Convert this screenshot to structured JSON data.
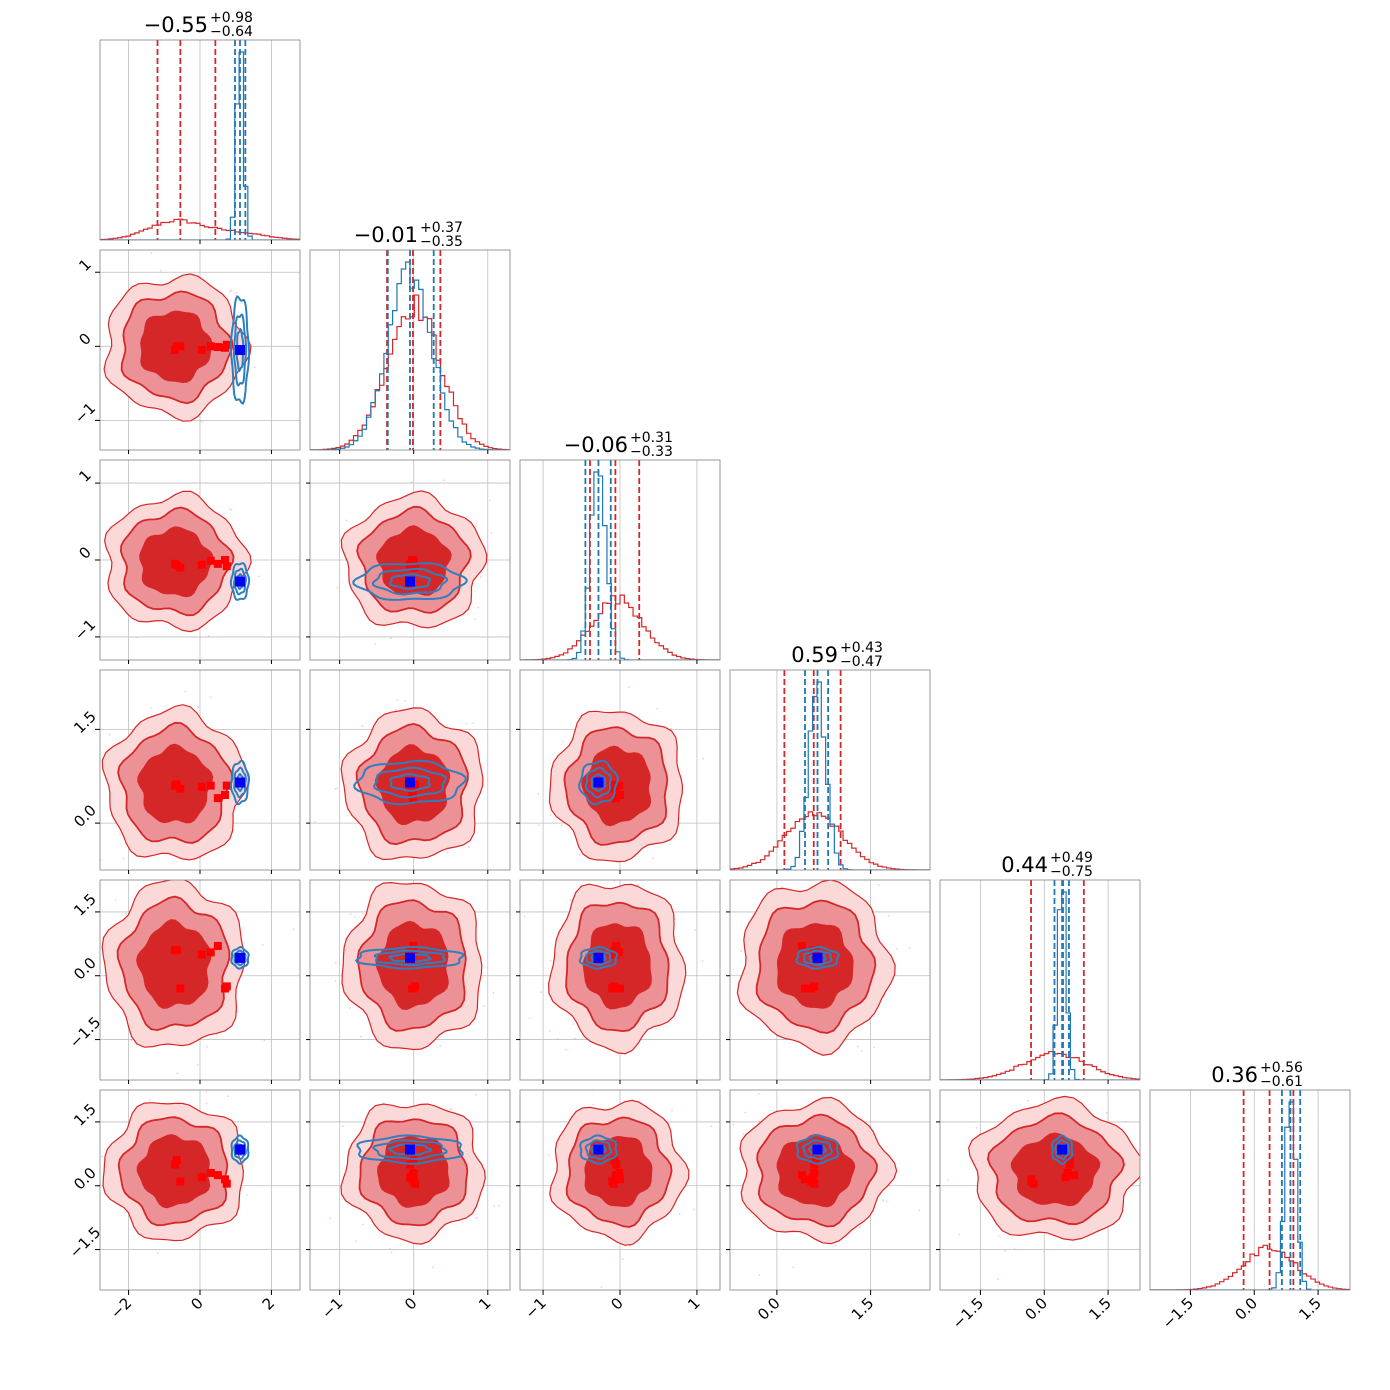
{
  "chart_data": {
    "type": "corner",
    "parameter_count": 6,
    "grid": true,
    "axis_limits": [
      [
        -2.8,
        2.8
      ],
      [
        -1.4,
        1.3
      ],
      [
        -1.3,
        1.3
      ],
      [
        -0.75,
        2.45
      ],
      [
        -2.45,
        2.25
      ],
      [
        -2.45,
        2.25
      ]
    ],
    "tick_values": [
      [
        -2,
        0,
        2
      ],
      [
        -1,
        0,
        1
      ],
      [
        -1,
        0,
        1
      ],
      [
        0.0,
        1.5
      ],
      [
        -1.5,
        0.0,
        1.5
      ],
      [
        -1.5,
        0.0,
        1.5
      ]
    ],
    "tick_labels": [
      [
        "−2",
        "0",
        "2"
      ],
      [
        "−1",
        "0",
        "1"
      ],
      [
        "−1",
        "0",
        "1"
      ],
      [
        "0.0",
        "1.5"
      ],
      [
        "−1.5",
        "0.0",
        "1.5"
      ],
      [
        "−1.5",
        "0.0",
        "1.5"
      ]
    ],
    "titles": [
      {
        "value": "−0.55",
        "plus": "+0.98",
        "minus": "−0.64"
      },
      {
        "value": "−0.01",
        "plus": "+0.37",
        "minus": "−0.35"
      },
      {
        "value": "−0.06",
        "plus": "+0.31",
        "minus": "−0.33"
      },
      {
        "value": "0.59",
        "plus": "+0.43",
        "minus": "−0.47"
      },
      {
        "value": "0.44",
        "plus": "+0.49",
        "minus": "−0.75"
      },
      {
        "value": "0.36",
        "plus": "+0.56",
        "minus": "−0.61"
      }
    ],
    "series": [
      {
        "color": "#d62728",
        "marginals": [
          {
            "mean": -0.7,
            "sd": 0.75,
            "tail_mean": 1.0,
            "tail_sd": 0.8,
            "tail_weight": 0.28,
            "quantiles": [
              -1.19,
              -0.55,
              0.43
            ]
          },
          {
            "mean": 0.0,
            "sd": 0.36,
            "quantiles": [
              -0.36,
              -0.01,
              0.36
            ]
          },
          {
            "mean": -0.03,
            "sd": 0.33,
            "quantiles": [
              -0.39,
              -0.06,
              0.25
            ]
          },
          {
            "mean": 0.6,
            "sd": 0.46,
            "quantiles": [
              0.12,
              0.59,
              1.02
            ]
          },
          {
            "mean": 0.25,
            "sd": 0.75,
            "quantiles": [
              -0.31,
              0.44,
              0.93
            ]
          },
          {
            "mean": 0.35,
            "sd": 0.62,
            "quantiles": [
              -0.25,
              0.36,
              0.92
            ]
          }
        ],
        "markers": [
          [
            -0.7,
            -0.55,
            0.5,
            0.75,
            0.3,
            0.7,
            -0.65,
            0.05
          ],
          [
            -0.05,
            0.0,
            -0.01,
            0.02,
            0.0,
            -0.02,
            0.0,
            -0.05
          ],
          [
            -0.05,
            -0.1,
            -0.05,
            -0.08,
            -0.01,
            0.0,
            -0.07,
            -0.06
          ],
          [
            0.6,
            0.55,
            0.4,
            0.6,
            0.6,
            0.45,
            0.62,
            0.58
          ],
          [
            0.6,
            -0.3,
            0.7,
            -0.25,
            0.55,
            -0.3,
            0.6,
            0.5
          ],
          [
            0.5,
            0.1,
            0.25,
            0.05,
            0.3,
            0.15,
            0.6,
            0.2
          ]
        ]
      },
      {
        "color": "#1f77b4",
        "marginals": [
          {
            "mean": 1.12,
            "sd": 0.1,
            "quantiles": [
              0.98,
              1.12,
              1.27
            ]
          },
          {
            "mean": -0.05,
            "sd": 0.3,
            "quantiles": [
              -0.35,
              -0.05,
              0.27
            ]
          },
          {
            "mean": -0.28,
            "sd": 0.1,
            "quantiles": [
              -0.45,
              -0.28,
              -0.12
            ]
          },
          {
            "mean": 0.65,
            "sd": 0.14,
            "quantiles": [
              0.45,
              0.65,
              0.82
            ]
          },
          {
            "mean": 0.42,
            "sd": 0.1,
            "quantiles": [
              0.24,
              0.42,
              0.58
            ]
          },
          {
            "mean": 0.85,
            "sd": 0.13,
            "quantiles": [
              0.65,
              0.85,
              1.08
            ]
          }
        ],
        "truth": [
          1.12,
          -0.05,
          -0.28,
          0.65,
          0.42,
          0.85
        ]
      }
    ]
  }
}
